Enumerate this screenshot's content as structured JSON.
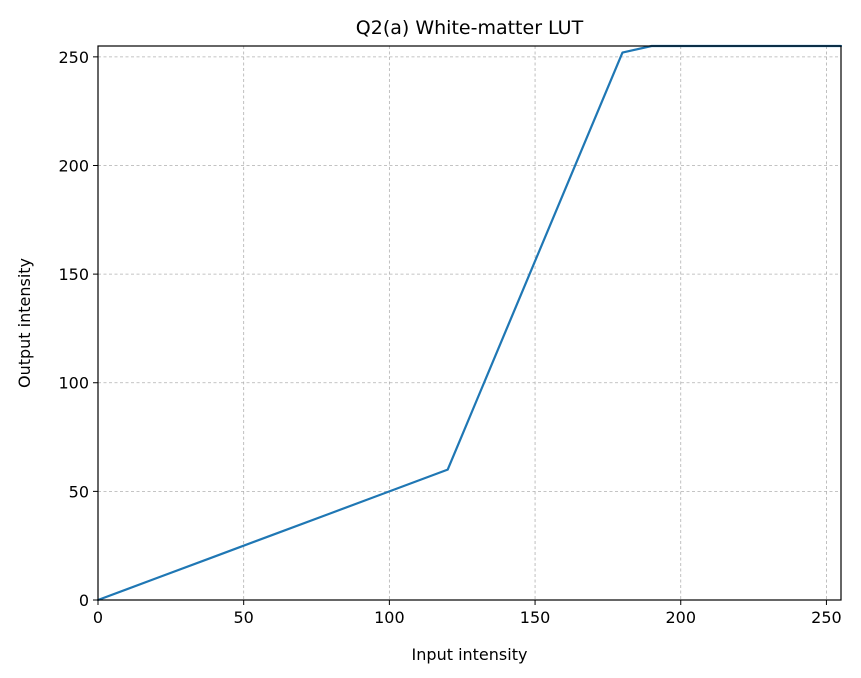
{
  "chart_data": {
    "type": "line",
    "title": "Q2(a) White-matter LUT",
    "xlabel": "Input intensity",
    "ylabel": "Output intensity",
    "xlim": [
      0,
      255
    ],
    "ylim": [
      0,
      255
    ],
    "xticks": [
      0,
      50,
      100,
      150,
      200,
      250
    ],
    "yticks": [
      0,
      50,
      100,
      150,
      200,
      250
    ],
    "grid": true,
    "series": [
      {
        "color": "#1f77b4",
        "x": [
          0,
          20,
          40,
          60,
          80,
          100,
          120,
          125,
          130,
          140,
          150,
          160,
          170,
          180,
          190,
          200,
          210,
          220,
          230,
          240,
          250,
          255
        ],
        "y": [
          0,
          10,
          20,
          30,
          40,
          50,
          60,
          76,
          92,
          124,
          156,
          188,
          220,
          252,
          255,
          255,
          255,
          255,
          255,
          255,
          255,
          255
        ]
      }
    ]
  }
}
